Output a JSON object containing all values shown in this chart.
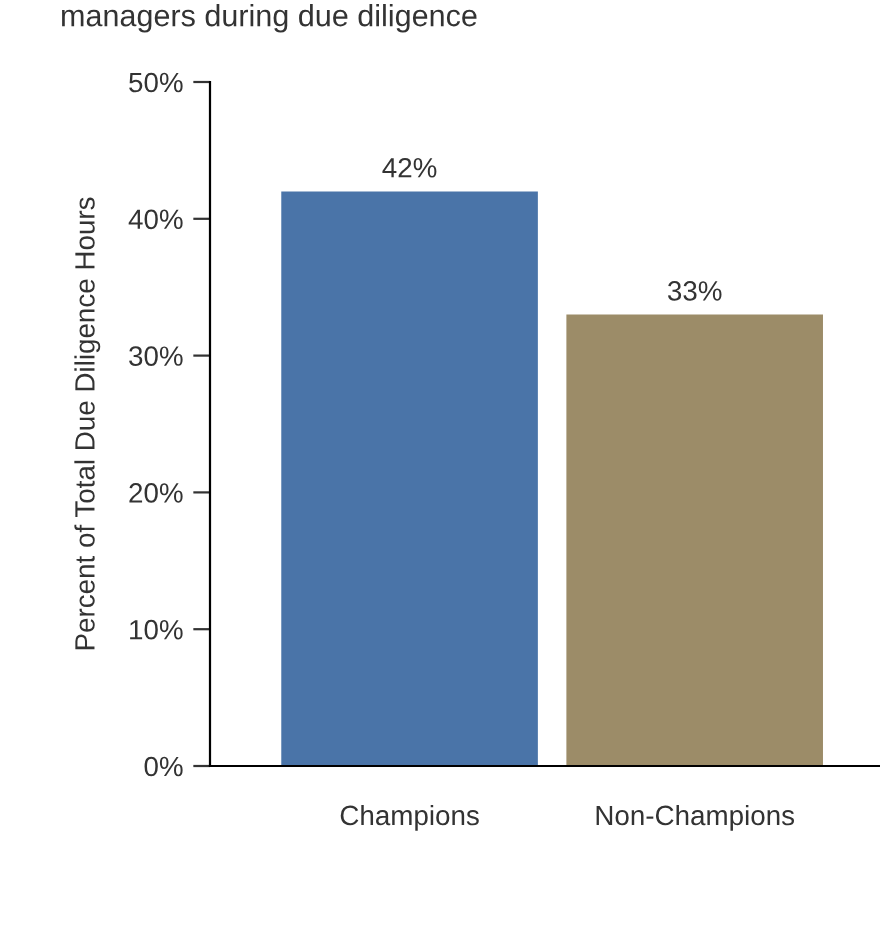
{
  "chart_data": {
    "type": "bar",
    "title": "managers during due diligence",
    "ylabel": "Percent of Total Due Diligence Hours",
    "categories": [
      "Champions",
      "Non-Champions"
    ],
    "values": [
      42,
      33
    ],
    "colors": [
      "#4a74a8",
      "#9c8c68"
    ],
    "value_labels": [
      "42%",
      "33%"
    ],
    "ylim": [
      0,
      50
    ],
    "yticks": [
      {
        "value": 0,
        "label": "0%"
      },
      {
        "value": 10,
        "label": "10%"
      },
      {
        "value": 20,
        "label": "20%"
      },
      {
        "value": 30,
        "label": "30%"
      },
      {
        "value": 40,
        "label": "40%"
      },
      {
        "value": 50,
        "label": "50%"
      }
    ],
    "grid": false
  }
}
